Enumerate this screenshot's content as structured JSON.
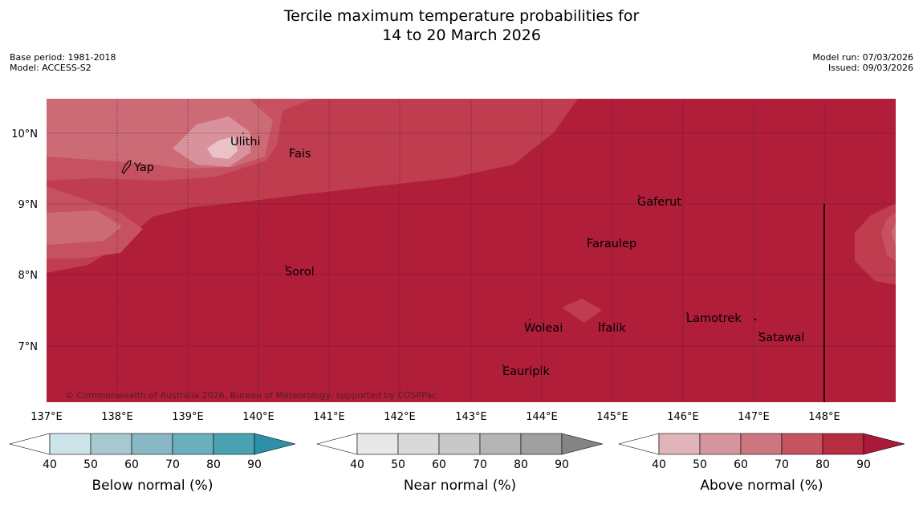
{
  "title": {
    "line1": "Tercile maximum temperature probabilities for",
    "line2": "14 to 20 March 2026"
  },
  "meta_left": {
    "base_period": "Base period: 1981-2018",
    "model": "Model: ACCESS-S2"
  },
  "meta_right": {
    "model_run": "Model run: 07/03/2026",
    "issued": "Issued: 09/03/2026"
  },
  "map": {
    "lat_labels": [
      "10°N",
      "9°N",
      "8°N",
      "7°N"
    ],
    "lon_labels": [
      "137°E",
      "138°E",
      "139°E",
      "140°E",
      "141°E",
      "142°E",
      "143°E",
      "144°E",
      "145°E",
      "146°E",
      "147°E",
      "148°E"
    ],
    "places": {
      "yap": "Yap",
      "ulithi": "Ulithi",
      "fais": "Fais",
      "gaferut": "Gaferut",
      "faraulep": "Faraulep",
      "sorol": "Sorol",
      "lamotrek": "Lamotrek",
      "woleai": "Woleai",
      "ifalik": "Ifalik",
      "satawal": "Satawal",
      "eauripik": "Eauripik"
    },
    "copyright": "© Commonwealth of Australia 2026, Bureau of Meteorology, supported by COSPPac"
  },
  "legends": {
    "ticks": [
      "40",
      "50",
      "60",
      "70",
      "80",
      "90"
    ],
    "below": {
      "title": "Below normal (%)",
      "colors": [
        "#ffffff",
        "#cce3ea",
        "#a8c8cf",
        "#89b7c4",
        "#6baebe",
        "#4aa2b3",
        "#2e8fa8"
      ]
    },
    "near": {
      "title": "Near normal (%)",
      "colors": [
        "#ffffff",
        "#e8e8e8",
        "#d9d9d9",
        "#c8c8c8",
        "#b5b5b5",
        "#a0a0a0",
        "#848484"
      ]
    },
    "above": {
      "title": "Above normal (%)",
      "colors": [
        "#ffffff",
        "#e0b4b9",
        "#d6959d",
        "#cc777f",
        "#c35460",
        "#b62c40",
        "#aa1a38"
      ]
    }
  },
  "colors": {
    "above_90": "#b01e3a",
    "above_80": "#bf3d4f",
    "above_70": "#c55161",
    "above_60": "#cc6b75",
    "above_50": "#d9929b",
    "above_40": "#e8c2c6"
  }
}
